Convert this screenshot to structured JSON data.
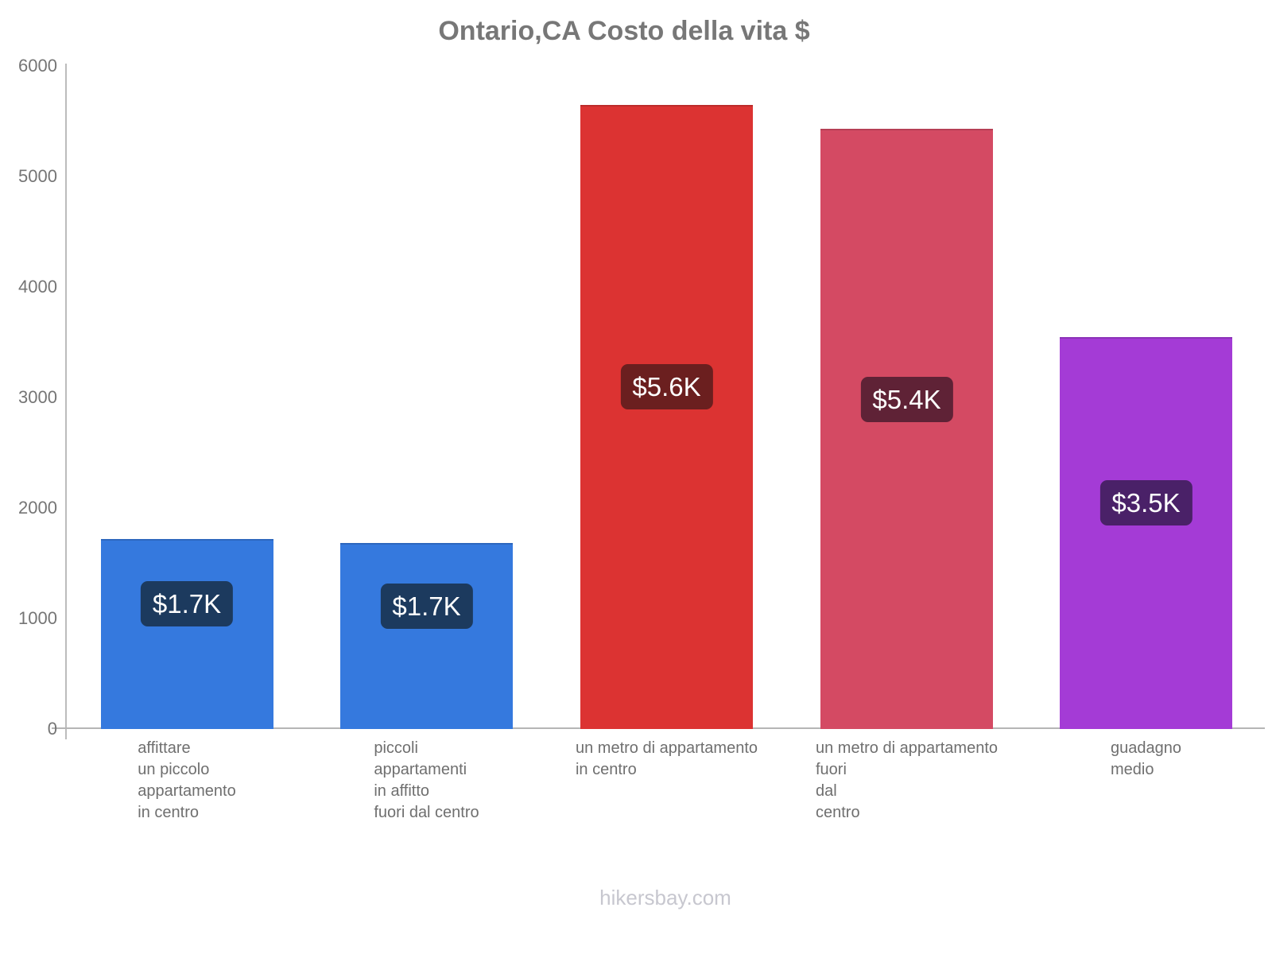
{
  "title": "Ontario,CA Costo della vita $",
  "footer": "hikersbay.com",
  "colors": {
    "title_text": "#777777",
    "axis_line": "#bcbcbc",
    "tick_text": "#757575",
    "category_text": "#6f6f6f",
    "watermark_text": "#c7c7cf",
    "badge_text": "#ffffff"
  },
  "chart_data": {
    "type": "bar",
    "title": "Ontario,CA Costo della vita $",
    "xlabel": "",
    "ylabel": "",
    "ylim": [
      0,
      6000
    ],
    "y_ticks": [
      0,
      1000,
      2000,
      3000,
      4000,
      5000,
      6000
    ],
    "grid": false,
    "legend": false,
    "currency": "$",
    "categories": [
      [
        "affittare",
        "un piccolo",
        "appartamento",
        "in centro"
      ],
      [
        "piccoli",
        "appartamenti",
        "in affitto",
        "fuori dal centro"
      ],
      [
        "un metro di appartamento",
        "in centro"
      ],
      [
        "un metro di appartamento",
        "fuori",
        "dal",
        "centro"
      ],
      [
        "guadagno",
        "medio"
      ]
    ],
    "values": [
      1720,
      1680,
      5650,
      5430,
      3550
    ],
    "value_labels": [
      "$1.7K",
      "$1.7K",
      "$5.6K",
      "$5.4K",
      "$3.5K"
    ],
    "bar_colors": [
      "#3579de",
      "#3579de",
      "#dc3332",
      "#d44a63",
      "#a43bd6"
    ],
    "label_bg_colors": [
      "#1c3a5e",
      "#1c3a5e",
      "#6b1f1f",
      "#5f2236",
      "#4a2168"
    ]
  }
}
